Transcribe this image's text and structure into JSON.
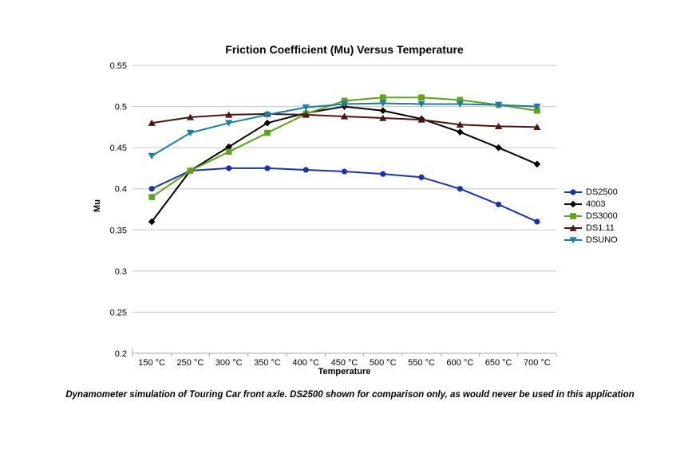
{
  "caption": "Dynamometer simulation of Touring Car front axle. DS2500 shown for comparison only, as would never be used in this application",
  "chart_data": {
    "type": "line",
    "title": "Friction Coefficient (Mu) Versus Temperature",
    "xlabel": "Temperature",
    "ylabel": "Mu",
    "categories": [
      "150 °C",
      "250 °C",
      "300 °C",
      "350 °C",
      "400 °C",
      "450 °C",
      "500 °C",
      "550 °C",
      "600 °C",
      "650 °C",
      "700 °C"
    ],
    "ylim": [
      0.2,
      0.55
    ],
    "yticks": [
      {
        "value": 0.55,
        "label": "0.55"
      },
      {
        "value": 0.5,
        "label": "0.5"
      },
      {
        "value": 0.45,
        "label": "0.45"
      },
      {
        "value": 0.4,
        "label": "0.4"
      },
      {
        "value": 0.35,
        "label": "0.35"
      },
      {
        "value": 0.3,
        "label": "0.3"
      },
      {
        "value": 0.25,
        "label": "0.25"
      },
      {
        "value": 0.2,
        "label": "0.2"
      }
    ],
    "grid": "horizontal",
    "legend_position": "right",
    "colors": {
      "gridline": "#C6C6C6",
      "axis": "#A6A6A6",
      "text": "#000000"
    },
    "series": [
      {
        "name": "DS2500",
        "color": "#1C349F",
        "marker": "circle",
        "values": [
          0.4,
          0.422,
          0.425,
          0.425,
          0.423,
          0.421,
          0.418,
          0.414,
          0.4,
          0.381,
          0.36
        ]
      },
      {
        "name": "4003",
        "color": "#000000",
        "marker": "diamond",
        "values": [
          0.36,
          0.422,
          0.451,
          0.48,
          0.492,
          0.5,
          0.495,
          0.485,
          0.469,
          0.45,
          0.43
        ]
      },
      {
        "name": "DS3000",
        "color": "#62A01E",
        "marker": "square",
        "values": [
          0.39,
          0.422,
          0.445,
          0.468,
          0.491,
          0.507,
          0.511,
          0.511,
          0.508,
          0.502,
          0.495
        ]
      },
      {
        "name": "DS1.11",
        "color": "#4A1612",
        "marker": "triangle-up",
        "values": [
          0.48,
          0.487,
          0.49,
          0.491,
          0.49,
          0.488,
          0.486,
          0.484,
          0.478,
          0.476,
          0.475
        ]
      },
      {
        "name": "DSUNO",
        "color": "#1C7E9E",
        "marker": "triangle-down",
        "values": [
          0.44,
          0.468,
          0.48,
          0.49,
          0.499,
          0.503,
          0.504,
          0.503,
          0.503,
          0.502,
          0.5
        ]
      }
    ]
  }
}
